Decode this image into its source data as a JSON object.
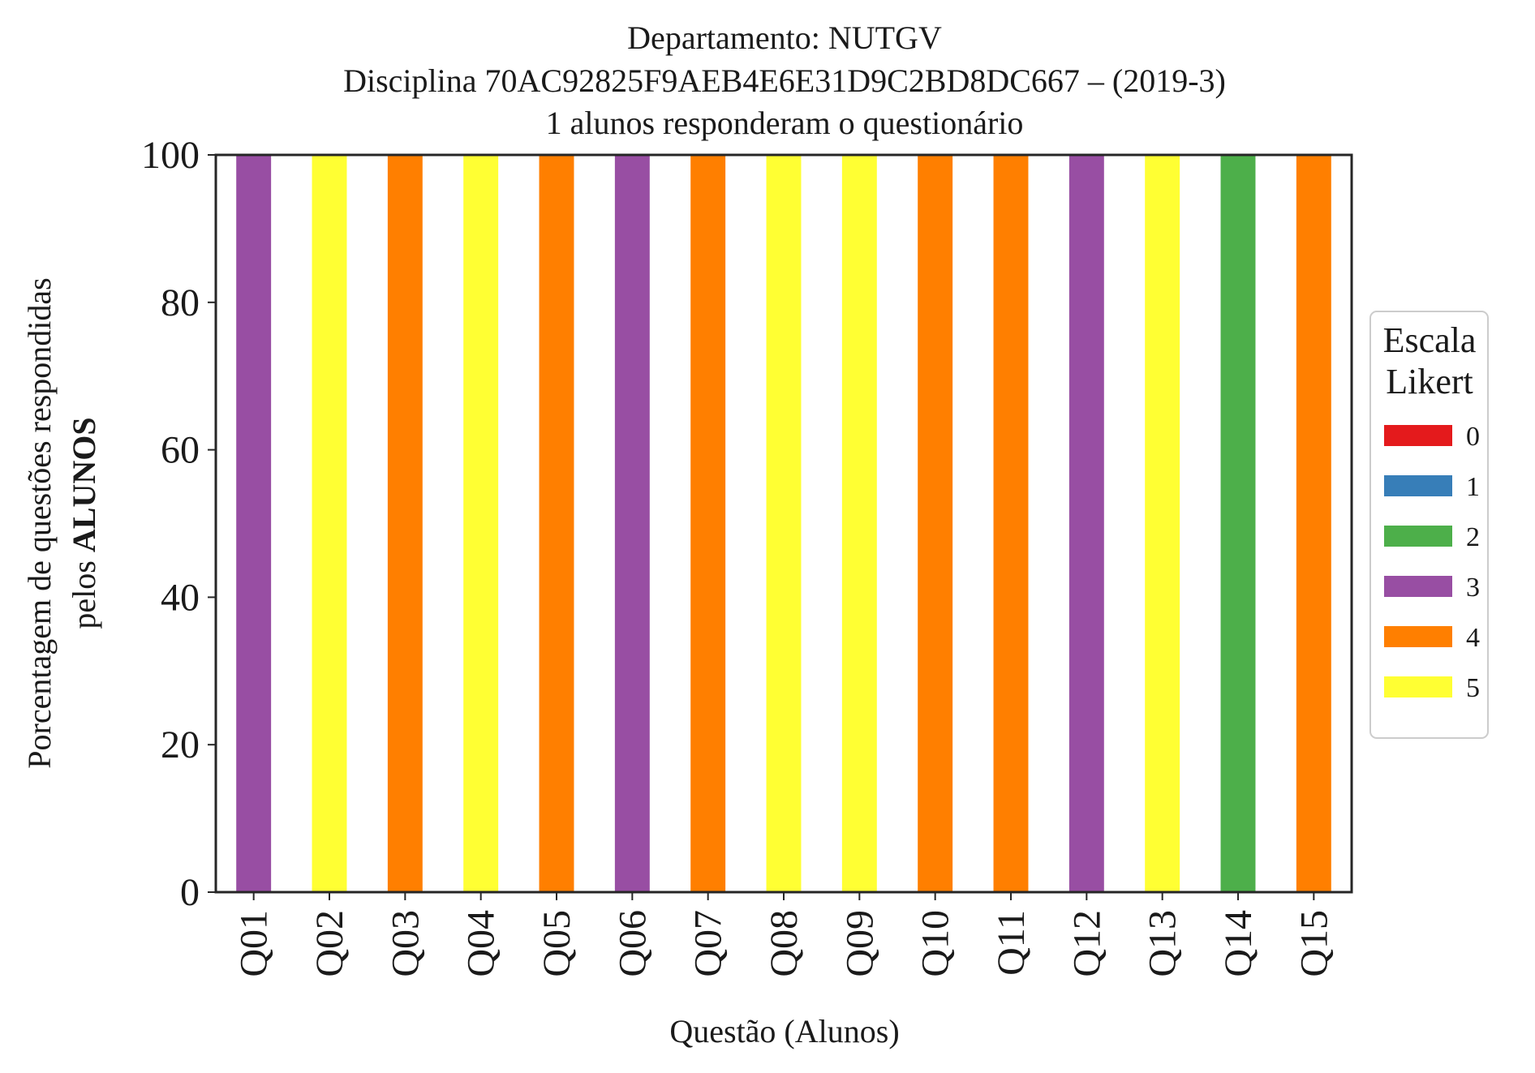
{
  "chart_data": {
    "type": "bar",
    "stacked": true,
    "title": [
      "Departamento: NUTGV",
      "Disciplina 70AC92825F9AEB4E6E31D9C2BD8DC667 – (2019-3)",
      "1 alunos responderam o questionário"
    ],
    "xlabel": "Questão (Alunos)",
    "ylabel_line1": "Porcentagem de questões respondidas",
    "ylabel_line2_prefix": "pelos ",
    "ylabel_line2_bold": "ALUNOS",
    "ylim": [
      0,
      100
    ],
    "yticks": [
      "0",
      "20",
      "40",
      "60",
      "80",
      "100"
    ],
    "categories": [
      "Q01",
      "Q02",
      "Q03",
      "Q04",
      "Q05",
      "Q06",
      "Q07",
      "Q08",
      "Q09",
      "Q10",
      "Q11",
      "Q12",
      "Q13",
      "Q14",
      "Q15"
    ],
    "series": [
      {
        "name": "0",
        "color": "#e41a1c",
        "values": [
          0,
          0,
          0,
          0,
          0,
          0,
          0,
          0,
          0,
          0,
          0,
          0,
          0,
          0,
          0
        ]
      },
      {
        "name": "1",
        "color": "#377eb8",
        "values": [
          0,
          0,
          0,
          0,
          0,
          0,
          0,
          0,
          0,
          0,
          0,
          0,
          0,
          0,
          0
        ]
      },
      {
        "name": "2",
        "color": "#4daf4a",
        "values": [
          0,
          0,
          0,
          0,
          0,
          0,
          0,
          0,
          0,
          0,
          0,
          0,
          0,
          100,
          0
        ]
      },
      {
        "name": "3",
        "color": "#984ea3",
        "values": [
          100,
          0,
          0,
          0,
          0,
          100,
          0,
          0,
          0,
          0,
          0,
          100,
          0,
          0,
          0
        ]
      },
      {
        "name": "4",
        "color": "#ff7f00",
        "values": [
          0,
          0,
          100,
          0,
          100,
          0,
          100,
          0,
          0,
          100,
          100,
          0,
          0,
          0,
          100
        ]
      },
      {
        "name": "5",
        "color": "#ffff33",
        "values": [
          0,
          100,
          0,
          100,
          0,
          0,
          0,
          100,
          100,
          0,
          0,
          0,
          100,
          0,
          0
        ]
      }
    ],
    "legend": {
      "title_line1": "Escala",
      "title_line2": "Likert",
      "placement": "center-right"
    },
    "grid": false
  }
}
